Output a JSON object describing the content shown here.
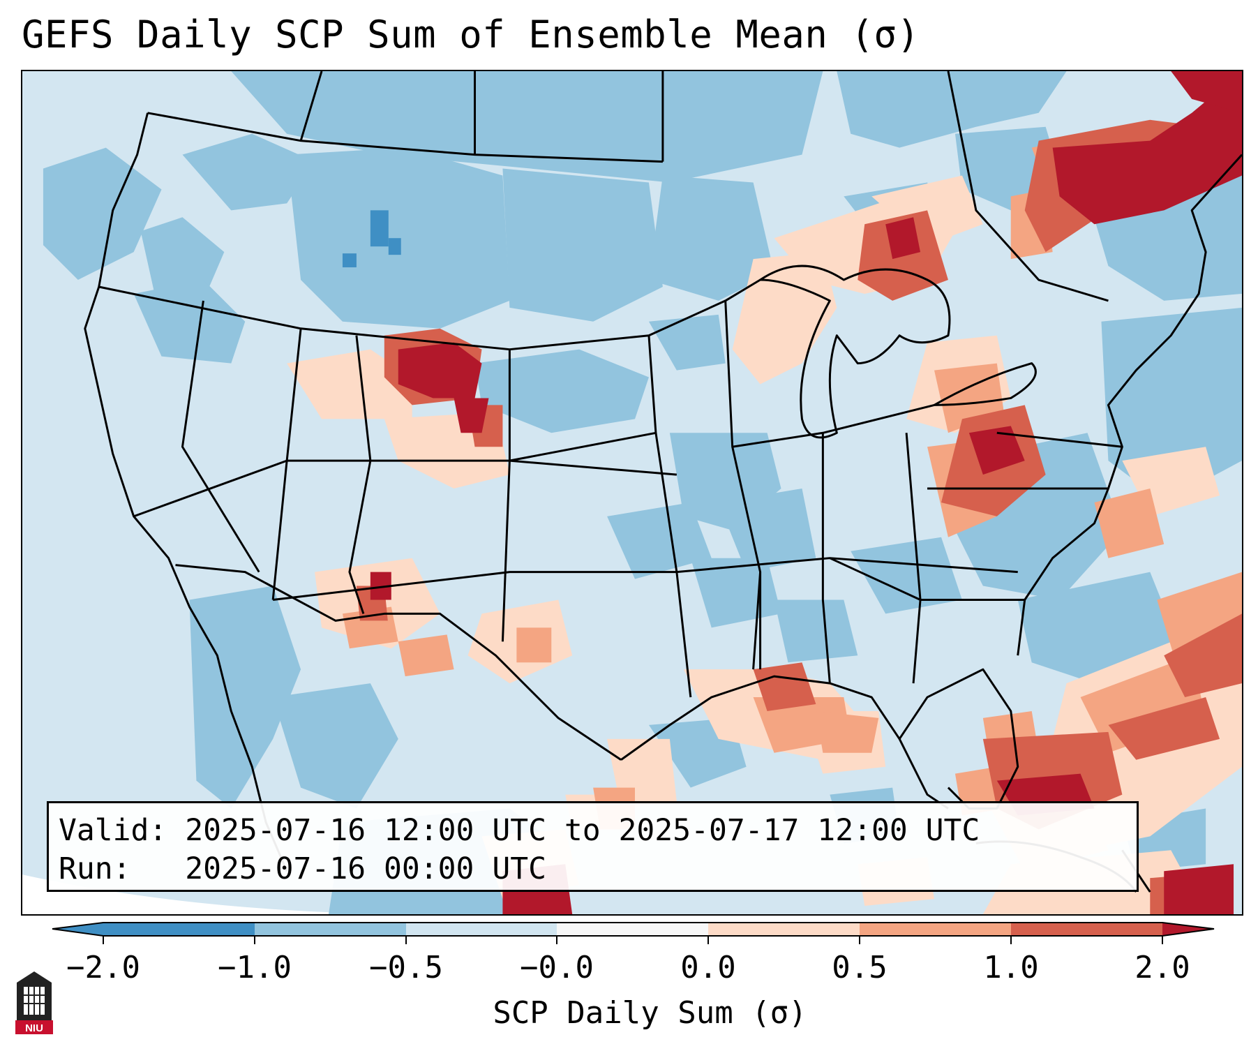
{
  "title": "GEFS Daily SCP Sum of Ensemble Mean (σ)",
  "info": {
    "valid_line": "Valid: 2025-07-16 12:00 UTC to 2025-07-17 12:00 UTC",
    "run_line": "Run:   2025-07-16 00:00 UTC"
  },
  "colorbar": {
    "label": "SCP Daily Sum (σ)",
    "ticks": [
      "−2.0",
      "−1.0",
      "−0.5",
      "−0.0",
      "0.0",
      "0.5",
      "1.0",
      "2.0"
    ],
    "colors": [
      "#3f8fc4",
      "#92c4de",
      "#d1e5f0",
      "#f7f7f7",
      "#fddbc7",
      "#f4a582",
      "#d6604d",
      "#b2182b"
    ]
  },
  "logo": {
    "text": "NIU"
  },
  "map": {
    "background_color": "#d3e6f1",
    "notable_regions": [
      "Northern Rockies / Wyoming positive anomaly",
      "Great Lakes / Michigan positive anomaly",
      "West Virginia / Ohio Valley positive anomaly",
      "Quebec / Maine positive anomaly",
      "Florida / Gulf positive anomaly",
      "Southeast New Mexico / West Texas positive anomaly"
    ]
  }
}
